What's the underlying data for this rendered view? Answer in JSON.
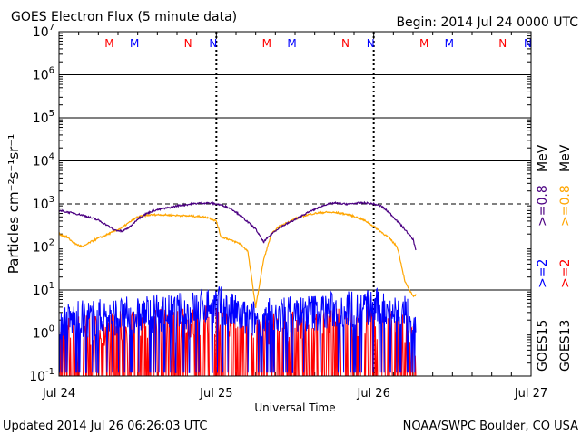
{
  "title": "GOES Electron Flux (5 minute data)",
  "begin_label": "Begin: 2014 Jul 24 0000 UTC",
  "updated_label": "Updated 2014 Jul 26 06:26:03 UTC",
  "credit": "NOAA/SWPC Boulder, CO USA",
  "colors": {
    "goes15_high": "#4b0082",
    "goes13_high": "#ffa500",
    "goes15_low": "#0000ff",
    "goes13_low": "#ff0000",
    "marker_m": "#ff0000",
    "marker_m_alt": "#0000ff",
    "marker_n": "#ff0000",
    "marker_n_alt": "#0000ff"
  },
  "chart_data": {
    "type": "line",
    "title": "GOES Electron Flux (5 minute data)",
    "xlabel": "Universal Time",
    "ylabel": "Particles cm⁻²s⁻¹sr⁻¹",
    "y_scale": "log",
    "ylim": [
      0.1,
      10000000
    ],
    "y_ticks": [
      {
        "value": 0.1,
        "base": "10",
        "exp": "-1"
      },
      {
        "value": 1,
        "base": "10",
        "exp": "0"
      },
      {
        "value": 10,
        "base": "10",
        "exp": "1"
      },
      {
        "value": 100,
        "base": "10",
        "exp": "2"
      },
      {
        "value": 1000,
        "base": "10",
        "exp": "3"
      },
      {
        "value": 10000,
        "base": "10",
        "exp": "4"
      },
      {
        "value": 100000,
        "base": "10",
        "exp": "5"
      },
      {
        "value": 1000000,
        "base": "10",
        "exp": "6"
      },
      {
        "value": 10000000,
        "base": "10",
        "exp": "7"
      }
    ],
    "x_unit": "days since 2014 Jul 24 0000 UTC",
    "xlim": [
      0,
      3
    ],
    "x_ticks": [
      {
        "value": 0,
        "label": "Jul 24"
      },
      {
        "value": 1,
        "label": "Jul 25"
      },
      {
        "value": 2,
        "label": "Jul 26"
      },
      {
        "value": 3,
        "label": "Jul 27"
      }
    ],
    "alert_threshold": 1000,
    "grid": true,
    "legend_right": [
      {
        "satellite": "GOES15",
        "label": ">=2",
        "unit": "MeV",
        "color": "#0000ff"
      },
      {
        "satellite": "GOES15",
        "label": ">=0.8",
        "unit": "MeV",
        "color": "#4b0082"
      },
      {
        "satellite": "GOES13",
        "label": ">=2",
        "unit": "MeV",
        "color": "#ff0000"
      },
      {
        "satellite": "GOES13",
        "label": ">=0.8",
        "unit": "MeV",
        "color": "#ffa500"
      }
    ],
    "satellite_labels": [
      "GOES15",
      "GOES13"
    ],
    "markers": [
      {
        "x": 0.32,
        "label": "M",
        "color": "#ff0000"
      },
      {
        "x": 0.48,
        "label": "M",
        "color": "#0000ff"
      },
      {
        "x": 0.82,
        "label": "N",
        "color": "#ff0000"
      },
      {
        "x": 0.98,
        "label": "N",
        "color": "#0000ff"
      },
      {
        "x": 1.32,
        "label": "M",
        "color": "#ff0000"
      },
      {
        "x": 1.48,
        "label": "M",
        "color": "#0000ff"
      },
      {
        "x": 1.82,
        "label": "N",
        "color": "#ff0000"
      },
      {
        "x": 1.98,
        "label": "N",
        "color": "#0000ff"
      },
      {
        "x": 2.32,
        "label": "M",
        "color": "#ff0000"
      },
      {
        "x": 2.48,
        "label": "M",
        "color": "#0000ff"
      },
      {
        "x": 2.82,
        "label": "N",
        "color": "#ff0000"
      },
      {
        "x": 2.98,
        "label": "N",
        "color": "#0000ff"
      }
    ],
    "series": [
      {
        "name": "GOES15 >=0.8 MeV",
        "color": "#4b0082",
        "x": [
          0,
          0.05,
          0.1,
          0.15,
          0.2,
          0.25,
          0.3,
          0.35,
          0.4,
          0.45,
          0.5,
          0.55,
          0.6,
          0.65,
          0.7,
          0.75,
          0.8,
          0.85,
          0.9,
          0.95,
          1.0,
          1.05,
          1.1,
          1.15,
          1.2,
          1.25,
          1.3,
          1.35,
          1.4,
          1.45,
          1.5,
          1.55,
          1.6,
          1.65,
          1.7,
          1.75,
          1.8,
          1.85,
          1.9,
          1.95,
          2.0,
          2.05,
          2.1,
          2.15,
          2.2,
          2.25,
          2.27
        ],
        "y": [
          700,
          650,
          600,
          550,
          480,
          420,
          330,
          250,
          230,
          290,
          450,
          580,
          700,
          760,
          820,
          900,
          950,
          1000,
          1050,
          1050,
          1000,
          900,
          750,
          550,
          380,
          260,
          130,
          200,
          280,
          350,
          430,
          550,
          680,
          820,
          980,
          1050,
          1000,
          1000,
          1050,
          1050,
          1000,
          880,
          620,
          400,
          250,
          150,
          80
        ]
      },
      {
        "name": "GOES13 >=0.8 MeV",
        "color": "#ffa500",
        "x": [
          0,
          0.05,
          0.1,
          0.15,
          0.2,
          0.25,
          0.3,
          0.35,
          0.4,
          0.45,
          0.5,
          0.55,
          0.6,
          0.65,
          0.7,
          0.75,
          0.8,
          0.85,
          0.9,
          0.95,
          1.0,
          1.03,
          1.06,
          1.1,
          1.15,
          1.2,
          1.25,
          1.3,
          1.35,
          1.4,
          1.45,
          1.5,
          1.55,
          1.6,
          1.65,
          1.7,
          1.75,
          1.8,
          1.85,
          1.9,
          1.95,
          2.0,
          2.05,
          2.1,
          2.15,
          2.2,
          2.25,
          2.27
        ],
        "y": [
          200,
          170,
          120,
          100,
          130,
          160,
          190,
          230,
          280,
          380,
          500,
          540,
          560,
          560,
          550,
          540,
          530,
          520,
          510,
          480,
          400,
          170,
          160,
          140,
          120,
          80,
          4,
          50,
          200,
          300,
          370,
          450,
          520,
          580,
          620,
          640,
          630,
          600,
          550,
          480,
          400,
          300,
          220,
          160,
          100,
          15,
          7,
          8
        ]
      },
      {
        "name": "GOES15 >=2 MeV",
        "color": "#0000ff",
        "x": [
          0,
          0.2,
          0.4,
          0.6,
          0.8,
          1.0,
          1.2,
          1.4,
          1.6,
          1.8,
          2.0,
          2.2,
          2.27
        ],
        "y": [
          1.8,
          2.2,
          2.5,
          2.8,
          3.2,
          5.0,
          2.0,
          2.6,
          3.0,
          3.5,
          4.0,
          2.8,
          1.0
        ]
      },
      {
        "name": "GOES13 >=2 MeV",
        "color": "#ff0000",
        "x": [
          0,
          0.2,
          0.4,
          0.6,
          0.8,
          1.0,
          1.2,
          1.4,
          1.6,
          1.8,
          2.0,
          2.2,
          2.27
        ],
        "y": [
          0.7,
          0.8,
          0.9,
          1.0,
          1.1,
          1.3,
          0.8,
          0.9,
          1.0,
          1.2,
          1.3,
          0.9,
          0.3
        ]
      }
    ]
  }
}
